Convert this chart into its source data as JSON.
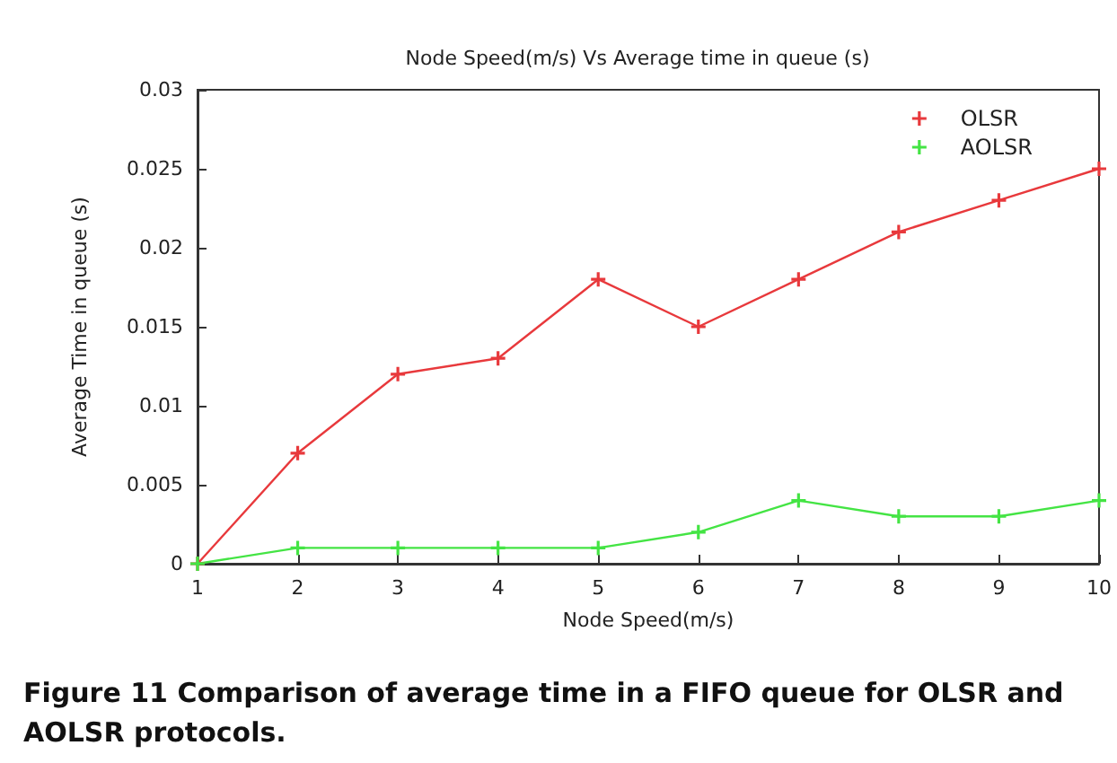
{
  "chart_data": {
    "type": "line",
    "title": "Node Speed(m/s) Vs Average time in queue (s)",
    "xlabel": "Node Speed(m/s)",
    "ylabel": "Average Time in queue (s)",
    "annotations": [
      "Figure 11 Comparison of average time in a FIFO queue for OLSR and AOLSR protocols."
    ],
    "x": [
      1,
      2,
      3,
      4,
      5,
      6,
      7,
      8,
      9,
      10
    ],
    "series": [
      {
        "name": "OLSR",
        "color": "#e8393c",
        "values": [
          0,
          0.007,
          0.012,
          0.013,
          0.018,
          0.015,
          0.018,
          0.021,
          0.023,
          0.025
        ]
      },
      {
        "name": "AOLSR",
        "color": "#44e444",
        "values": [
          0,
          0.001,
          0.001,
          0.001,
          0.001,
          0.002,
          0.004,
          0.003,
          0.003,
          0.004
        ]
      }
    ],
    "xlim": [
      1,
      10
    ],
    "xticks": [
      1,
      2,
      3,
      4,
      5,
      6,
      7,
      8,
      9,
      10
    ],
    "ylim": [
      0,
      0.03
    ],
    "yticks": [
      0,
      0.005,
      0.01,
      0.015,
      0.02,
      0.025,
      0.03
    ],
    "grid": false,
    "legend": "top right",
    "marker": "cross",
    "line_style": "solid"
  }
}
